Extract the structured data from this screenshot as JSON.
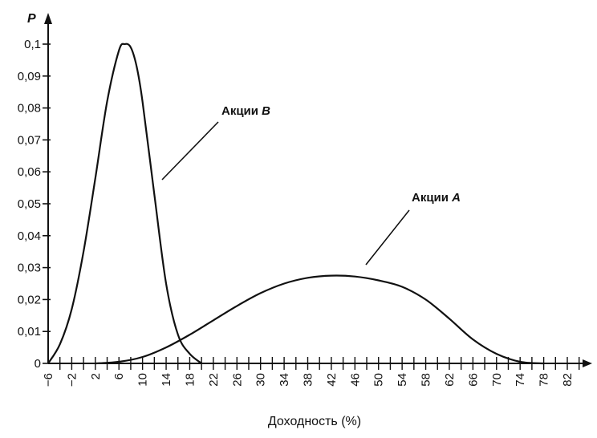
{
  "chart_data": {
    "type": "line",
    "title": "",
    "xlabel": "Доходность (%)",
    "ylabel": "P",
    "xlim": [
      -6,
      84
    ],
    "ylim": [
      0,
      0.11
    ],
    "grid": false,
    "legend": "none",
    "x_ticks": [
      -6,
      -2,
      2,
      6,
      10,
      14,
      18,
      22,
      26,
      30,
      34,
      38,
      42,
      46,
      50,
      54,
      58,
      62,
      66,
      70,
      74,
      78,
      82
    ],
    "x_tick_labels": [
      "−6",
      "−2",
      "2",
      "6",
      "10",
      "14",
      "18",
      "22",
      "26",
      "30",
      "34",
      "38",
      "42",
      "46",
      "50",
      "54",
      "58",
      "62",
      "66",
      "70",
      "74",
      "78",
      "82"
    ],
    "y_ticks": [
      0,
      0.01,
      0.02,
      0.03,
      0.04,
      0.05,
      0.06,
      0.07,
      0.08,
      0.09,
      0.1
    ],
    "y_tick_labels": [
      "0",
      "0,01",
      "0,02",
      "0,03",
      "0,04",
      "0,05",
      "0,06",
      "0,07",
      "0,08",
      "0,09",
      "0,1"
    ],
    "series": [
      {
        "name": "Акции B",
        "label_prefix": "Акции ",
        "label_letter": "B",
        "color": "#111111",
        "x": [
          -6,
          -4,
          -2,
          0,
          2,
          4,
          6,
          7,
          8,
          9,
          10,
          12,
          14,
          16,
          18,
          20
        ],
        "y": [
          0,
          0.006,
          0.017,
          0.035,
          0.058,
          0.082,
          0.098,
          0.1,
          0.099,
          0.093,
          0.082,
          0.053,
          0.025,
          0.009,
          0.003,
          0
        ]
      },
      {
        "name": "Акции A",
        "label_prefix": "Акции ",
        "label_letter": "A",
        "color": "#111111",
        "x": [
          2,
          6,
          10,
          14,
          18,
          22,
          26,
          30,
          34,
          38,
          42,
          46,
          50,
          54,
          58,
          62,
          66,
          70,
          74,
          78
        ],
        "y": [
          0,
          0.0005,
          0.002,
          0.005,
          0.009,
          0.0135,
          0.018,
          0.022,
          0.025,
          0.0268,
          0.0275,
          0.0272,
          0.026,
          0.024,
          0.02,
          0.014,
          0.0075,
          0.003,
          0.0005,
          0
        ]
      }
    ]
  }
}
